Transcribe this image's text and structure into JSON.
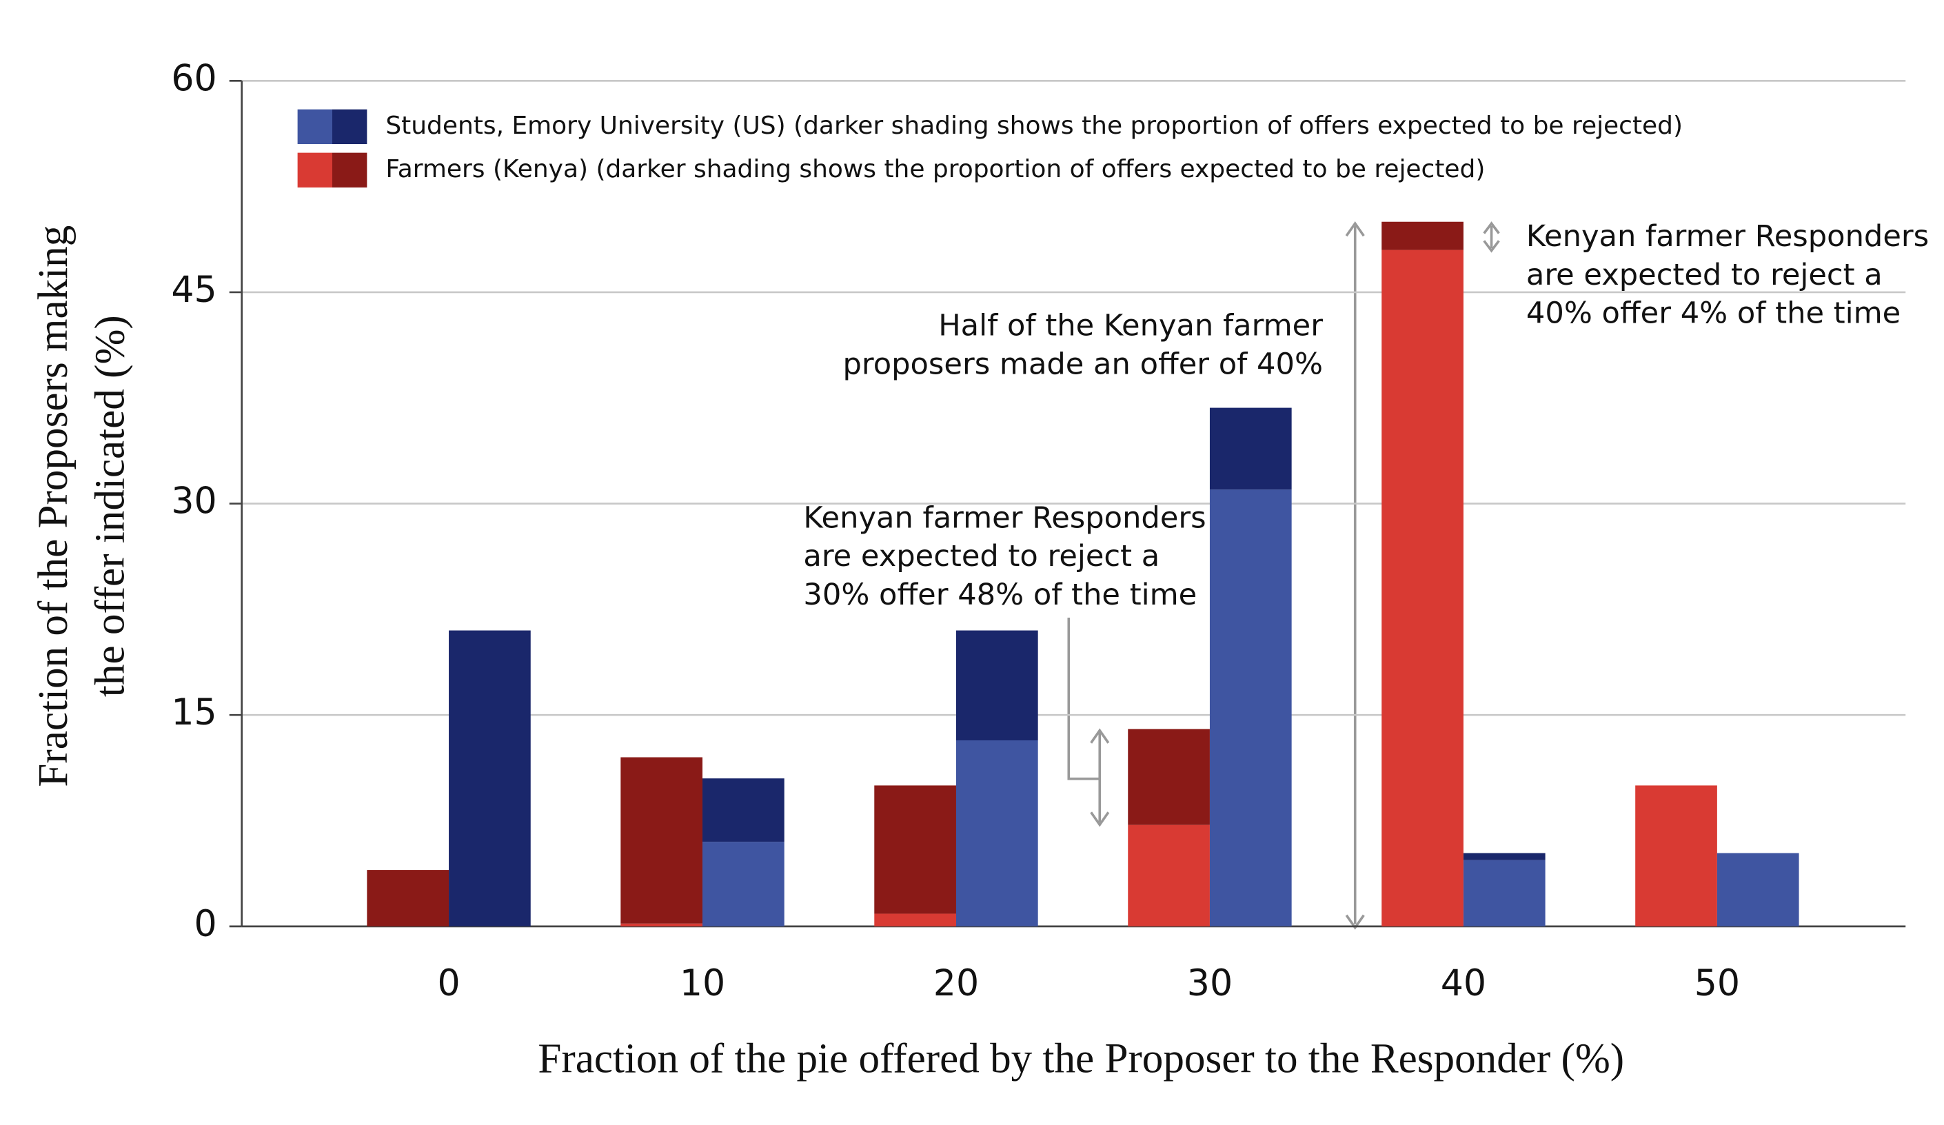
{
  "chart_data": {
    "type": "stacked-bar",
    "x_label": "Fraction of the pie offered by the Proposer to the Responder (%)",
    "y_label": [
      "Fraction of the Proposers making",
      "the offer indicated (%)"
    ],
    "categories": [
      0,
      10,
      20,
      30,
      40,
      50
    ],
    "series": [
      {
        "name": "Farmers (Kenya) (darker shading shows the proportion of offers expected to be rejected)",
        "color": "#d93a33",
        "dark_color": "#8a1a17",
        "values": [
          0,
          0.2,
          0.9,
          7.2,
          48,
          10
        ],
        "rejected": [
          4,
          11.8,
          9.1,
          6.8,
          2,
          0
        ]
      },
      {
        "name": "Students, Emory University (US) (darker shading shows the proportion of offers expected to be rejected)",
        "color": "#3f55a1",
        "dark_color": "#1a276b",
        "values": [
          0,
          6,
          13.2,
          31,
          4.7,
          5.2
        ],
        "rejected": [
          21,
          4.5,
          7.8,
          5.8,
          0.5,
          0
        ]
      }
    ],
    "legend_order": [
      1,
      0
    ],
    "ylim": [
      0,
      60
    ],
    "yticks": [
      0,
      15,
      30,
      45,
      60
    ],
    "grid": true,
    "annotations": [
      [
        "Half of the Kenyan farmer",
        "proposers made an offer of 40%"
      ],
      [
        "Kenyan farmer Responders",
        "are expected to reject a",
        "40% offer 4% of the time"
      ],
      [
        "Kenyan farmer Responders",
        "are expected to reject a",
        "30% offer 48% of the time"
      ]
    ]
  }
}
